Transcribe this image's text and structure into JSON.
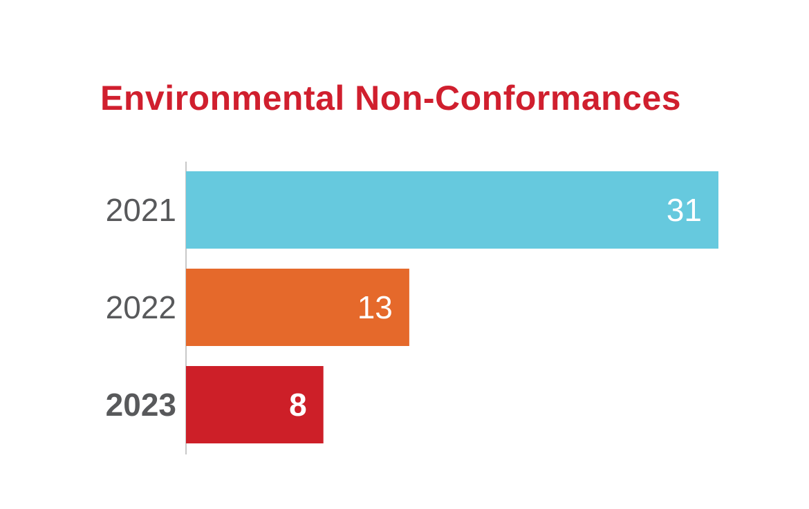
{
  "chart_data": {
    "type": "bar",
    "orientation": "horizontal",
    "title": "Environmental Non-Conformances",
    "categories": [
      "2021",
      "2022",
      "2023"
    ],
    "values": [
      31,
      13,
      8
    ],
    "bar_colors": [
      "#66c9de",
      "#e5692b",
      "#cd1f28"
    ],
    "value_labels": "inside-end",
    "xlim": [
      0,
      31
    ],
    "grid": false,
    "legend": "none"
  },
  "colors": {
    "title": "#d01f2e",
    "axis_line": "#c8c8c8",
    "category_text": "#58595b",
    "value_text": "#ffffff"
  }
}
